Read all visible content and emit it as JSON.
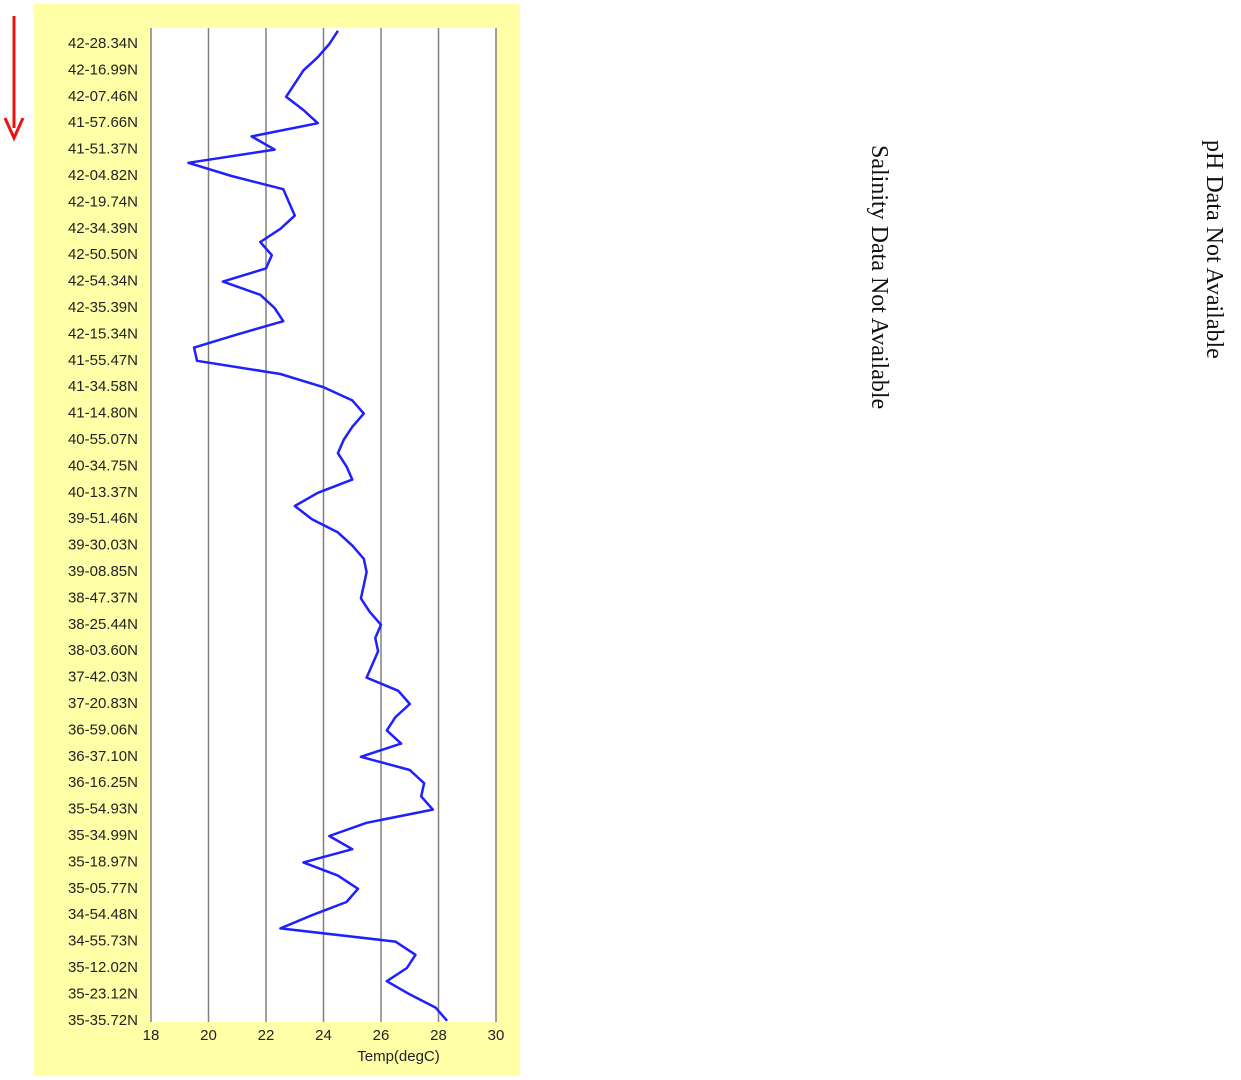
{
  "chart_data": {
    "type": "line",
    "color": "#1f1fff",
    "categories": [
      null,
      "42-28.34N",
      null,
      "42-16.99N",
      null,
      "42-07.46N",
      null,
      "41-57.66N",
      null,
      "41-51.37N",
      null,
      "42-04.82N",
      null,
      "42-19.74N",
      null,
      "42-34.39N",
      null,
      "42-50.50N",
      null,
      "42-54.34N",
      null,
      "42-35.39N",
      null,
      "42-15.34N",
      null,
      "41-55.47N",
      null,
      "41-34.58N",
      null,
      "41-14.80N",
      null,
      "40-55.07N",
      null,
      "40-34.75N",
      null,
      "40-13.37N",
      null,
      "39-51.46N",
      null,
      "39-30.03N",
      null,
      "39-08.85N",
      null,
      "38-47.37N",
      null,
      "38-25.44N",
      null,
      "38-03.60N",
      null,
      "37-42.03N",
      null,
      "37-20.83N",
      null,
      "36-59.06N",
      null,
      "36-37.10N",
      null,
      "36-16.25N",
      null,
      "35-54.93N",
      null,
      "35-34.99N",
      null,
      "35-18.97N",
      null,
      "35-05.77N",
      null,
      "34-54.48N",
      null,
      "34-55.73N",
      null,
      "35-12.02N",
      null,
      "35-23.12N",
      null,
      "35-35.72N"
    ],
    "values": [
      24.5,
      24.2,
      23.8,
      23.3,
      23.0,
      22.7,
      23.3,
      23.8,
      21.5,
      22.3,
      19.3,
      20.8,
      22.6,
      22.8,
      23.0,
      22.5,
      21.8,
      22.2,
      22.0,
      20.5,
      21.8,
      22.3,
      22.6,
      21.0,
      19.5,
      19.6,
      22.5,
      24.0,
      25.0,
      25.4,
      25.0,
      24.7,
      24.5,
      24.8,
      25.0,
      23.8,
      23.0,
      23.6,
      24.5,
      25.0,
      25.4,
      25.5,
      25.4,
      25.3,
      25.6,
      26.0,
      25.8,
      25.9,
      25.7,
      25.5,
      26.6,
      27.0,
      26.5,
      26.2,
      26.7,
      25.3,
      27.0,
      27.5,
      27.4,
      27.8,
      25.5,
      24.2,
      25.0,
      23.3,
      24.5,
      25.2,
      24.8,
      23.6,
      22.5,
      26.5,
      27.2,
      26.9,
      26.2,
      27.0,
      27.9,
      28.3
    ],
    "xlabel": "Temp(degC)",
    "xlim": [
      18,
      30
    ],
    "xticks": [
      18,
      20,
      22,
      24,
      26,
      28,
      30
    ],
    "grid": true
  },
  "salinity_message": "Salinity Data Not Available",
  "ph_message": "pH Data Not Available"
}
